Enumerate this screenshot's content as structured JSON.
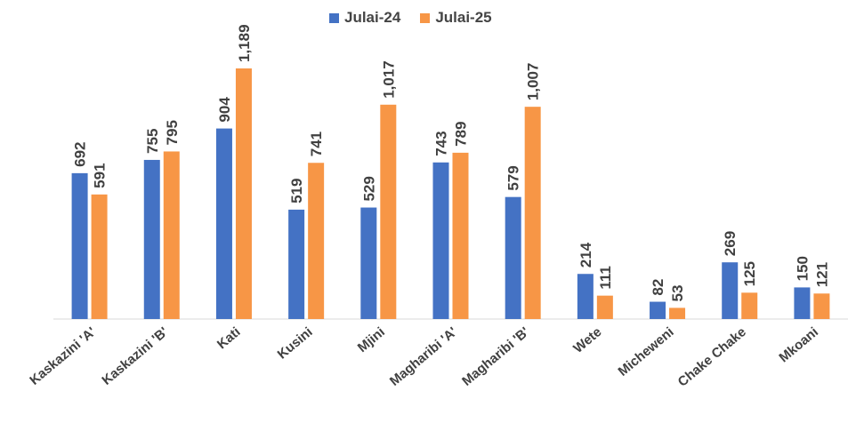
{
  "chart_data": {
    "type": "bar",
    "title": "",
    "xlabel": "",
    "ylabel": "",
    "categories": [
      "Kaskazini 'A'",
      "Kaskazini 'B'",
      "Kati",
      "Kusini",
      "Mjini",
      "Magharibi 'A'",
      "Magharibi 'B'",
      "Wete",
      "Micheweni",
      "Chake Chake",
      "Mkoani"
    ],
    "series": [
      {
        "name": "Julai-24",
        "color": "#4472C4",
        "values": [
          692,
          755,
          904,
          519,
          529,
          743,
          579,
          214,
          82,
          269,
          150
        ],
        "labels": [
          "692",
          "755",
          "904",
          "519",
          "529",
          "743",
          "579",
          "214",
          "82",
          "269",
          "150"
        ]
      },
      {
        "name": "Julai-25",
        "color": "#F79646",
        "values": [
          591,
          795,
          1189,
          741,
          1017,
          789,
          1007,
          111,
          53,
          125,
          121
        ],
        "labels": [
          "591",
          "795",
          "1,189",
          "741",
          "1,017",
          "789",
          "1,007",
          "111",
          "53",
          "125",
          "121"
        ]
      }
    ],
    "ylim": [
      0,
      1189
    ],
    "grid": false,
    "legend_position": "top"
  }
}
